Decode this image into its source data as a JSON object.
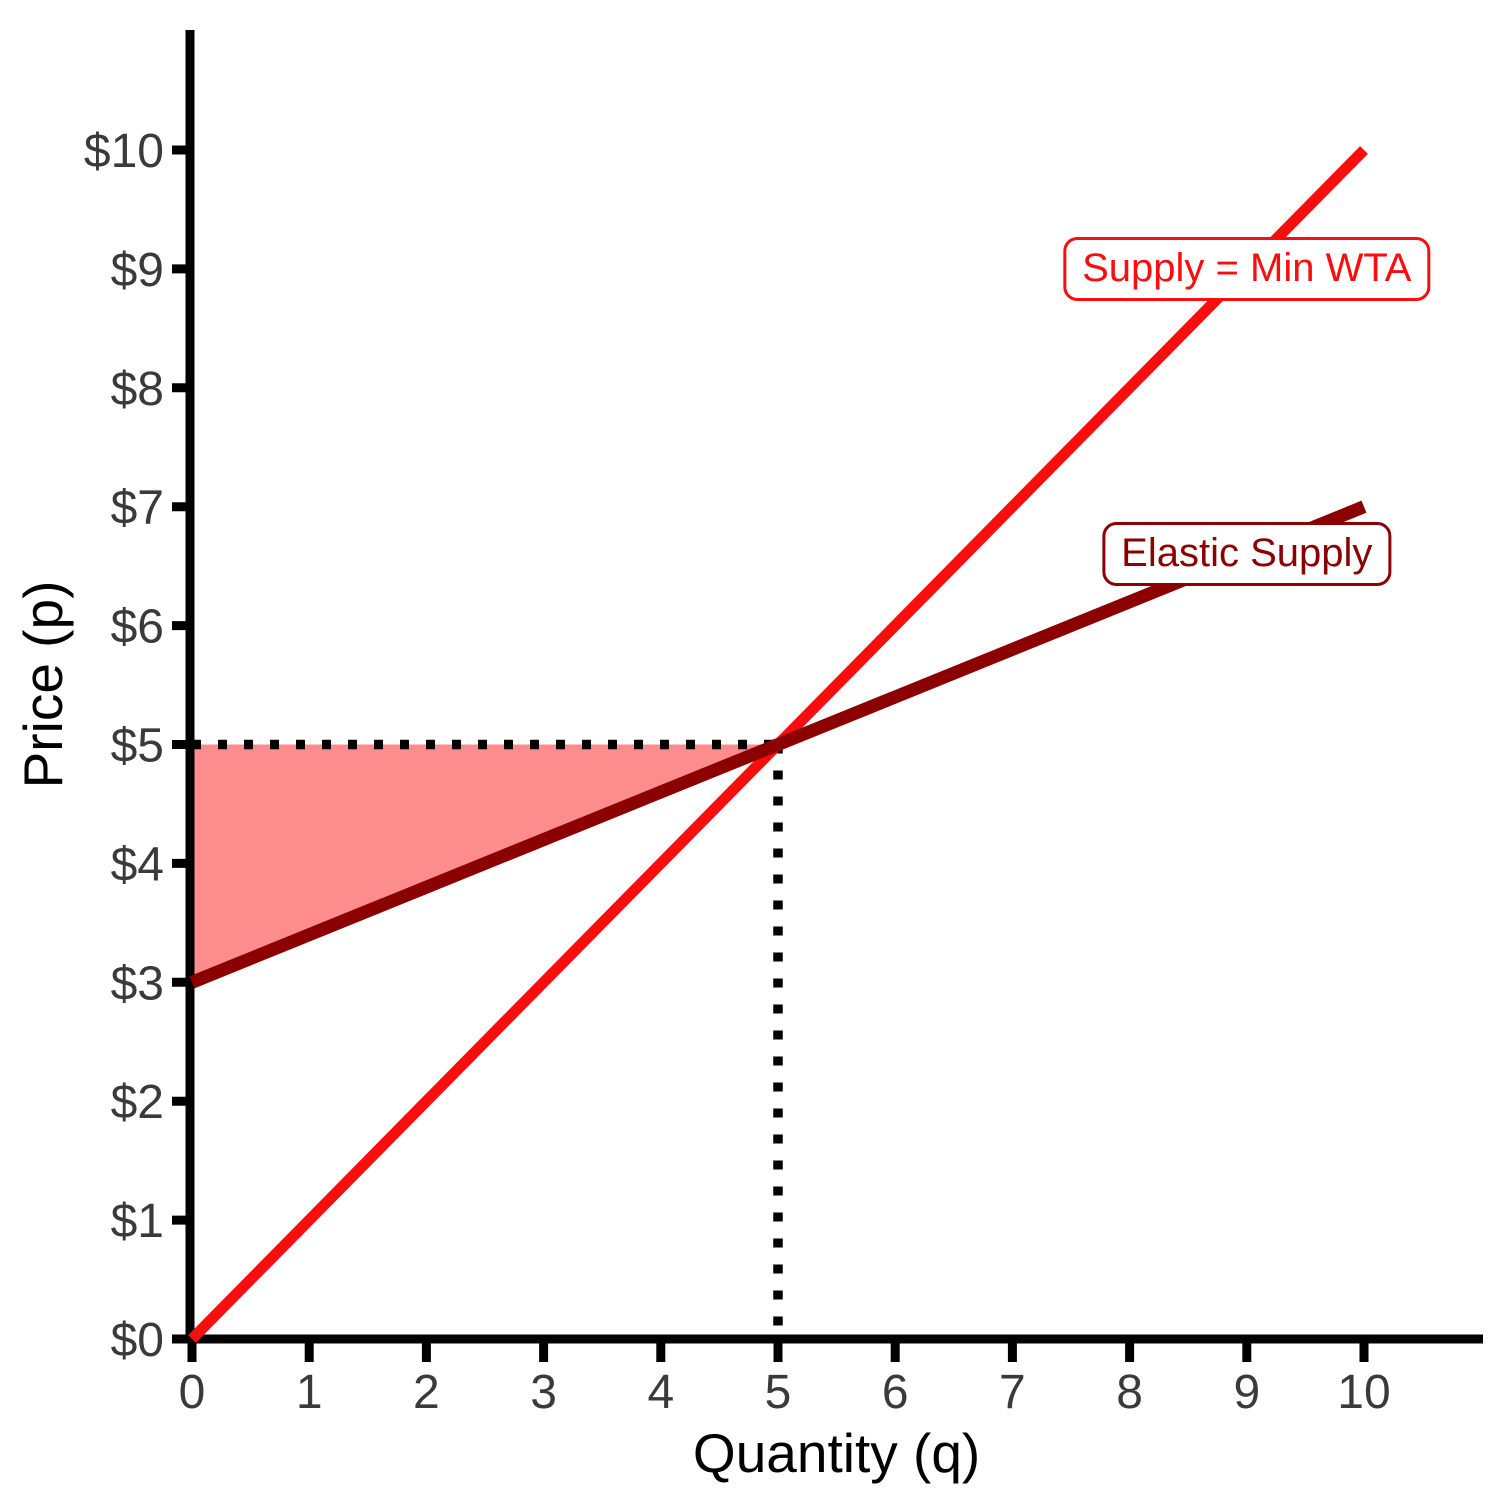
{
  "figure": {
    "background": "#ffffff"
  },
  "colors": {
    "axis": "#000000",
    "tick_text": "#3a3a3a",
    "supply_red": "#f90d0d",
    "elastic_darkred": "#8b0000",
    "surplus_fill": "rgba(250, 10, 10, 0.47)"
  },
  "axes": {
    "x": {
      "label": "Quantity (q)",
      "tick_values": [
        0,
        1,
        2,
        3,
        4,
        5,
        6,
        7,
        8,
        9,
        10
      ],
      "tick_labels": [
        "0",
        "1",
        "2",
        "3",
        "4",
        "5",
        "6",
        "7",
        "8",
        "9",
        "10"
      ],
      "range": [
        0,
        11
      ]
    },
    "y": {
      "label": "Price (p)",
      "tick_values": [
        0,
        1,
        2,
        3,
        4,
        5,
        6,
        7,
        8,
        9,
        10
      ],
      "tick_labels": [
        "$0",
        "$1",
        "$2",
        "$3",
        "$4",
        "$5",
        "$6",
        "$7",
        "$8",
        "$9",
        "$10"
      ],
      "range": [
        0,
        11
      ]
    }
  },
  "chart_data": {
    "type": "line",
    "title": "",
    "xlabel": "Quantity (q)",
    "ylabel": "Price (p)",
    "xlim": [
      0,
      11
    ],
    "ylim": [
      0,
      11
    ],
    "grid": "off",
    "series": [
      {
        "name": "Supply = Min WTA",
        "color": "#f90d0d",
        "line_width": 11,
        "x": [
          0,
          10
        ],
        "y": [
          0,
          10
        ]
      },
      {
        "name": "Elastic Supply",
        "color": "#8b0000",
        "line_width": 13,
        "x": [
          0,
          10
        ],
        "y": [
          3,
          7
        ]
      }
    ],
    "equilibrium": {
      "q": 5,
      "p": 5
    },
    "guide_lines": [
      {
        "name": "price-5-dotted-line",
        "from": [
          0,
          5
        ],
        "to": [
          5,
          5
        ],
        "style": "dotted",
        "color": "#000000"
      },
      {
        "name": "quantity-5-dotted-line",
        "from": [
          5,
          5
        ],
        "to": [
          5,
          0
        ],
        "style": "dotted",
        "color": "#000000"
      }
    ],
    "shaded_region": {
      "name": "surplus-triangle",
      "points": [
        [
          0,
          3
        ],
        [
          0,
          5
        ],
        [
          5,
          5
        ]
      ],
      "fill": "rgba(250, 10, 10, 0.47)"
    },
    "labels": [
      {
        "text": "Supply = Min WTA",
        "color": "#f90d0d",
        "q": 9.0,
        "p": 9.0
      },
      {
        "text": "Elastic Supply",
        "color": "#8b0000",
        "q": 9.0,
        "p": 6.6
      }
    ]
  }
}
